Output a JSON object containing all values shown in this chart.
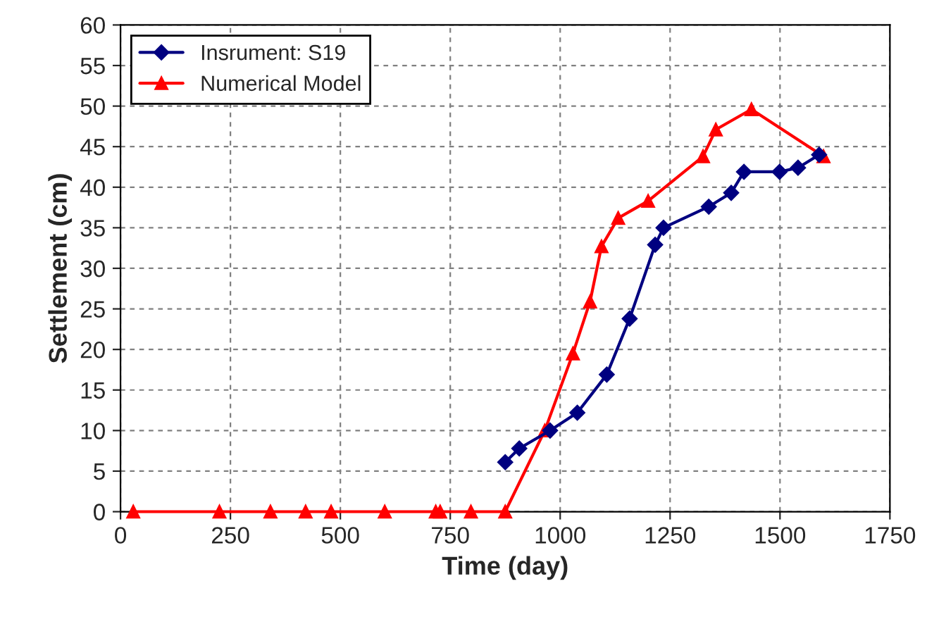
{
  "chart_data": {
    "type": "line",
    "xlabel": "Time (day)",
    "ylabel": "Settlement (cm)",
    "xlim": [
      0,
      1750
    ],
    "xticks": [
      0,
      250,
      500,
      750,
      1000,
      1250,
      1500,
      1750
    ],
    "ylim": [
      0,
      60
    ],
    "yticks": [
      0,
      5,
      10,
      15,
      20,
      25,
      30,
      35,
      40,
      45,
      50,
      55,
      60
    ],
    "grid": true,
    "legend": "top left",
    "series": [
      {
        "name": "Insrument: S19",
        "color": "#000080",
        "marker": "diamond",
        "x": [
          875,
          907,
          977,
          1039,
          1106,
          1158,
          1216,
          1235,
          1338,
          1389,
          1418,
          1499,
          1541,
          1589
        ],
        "values": [
          6.1,
          7.8,
          10,
          12.2,
          16.9,
          23.8,
          32.9,
          35,
          37.6,
          39.3,
          41.9,
          41.9,
          42.4,
          44
        ]
      },
      {
        "name": "Numerical Model",
        "color": "#ff0000",
        "marker": "triangle",
        "x": [
          29,
          225,
          341,
          421,
          479,
          601,
          717,
          727,
          797,
          875,
          965,
          1029,
          1068,
          1094,
          1132,
          1200,
          1325,
          1354,
          1435,
          1599
        ],
        "values": [
          0,
          0,
          0,
          0,
          0,
          0,
          0,
          0,
          0,
          0,
          10,
          19.5,
          25.9,
          32.7,
          36.2,
          38.3,
          43.8,
          47.1,
          49.6,
          43.8
        ]
      }
    ]
  }
}
